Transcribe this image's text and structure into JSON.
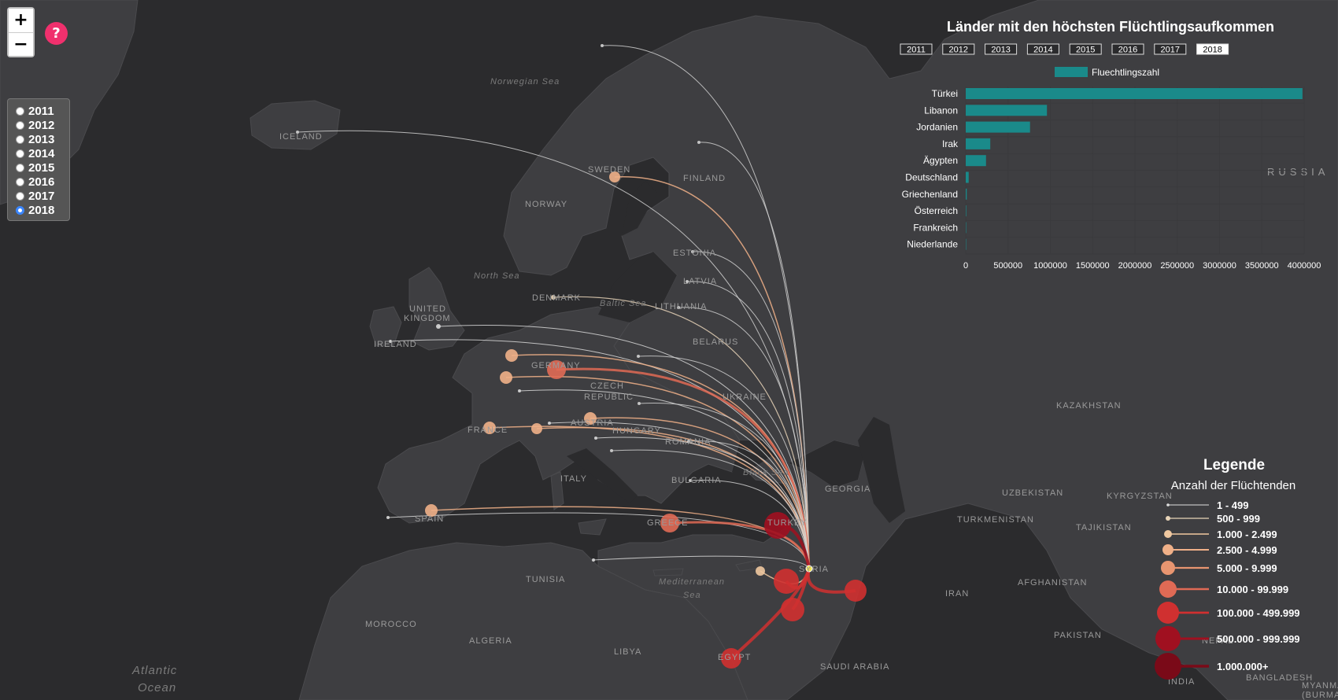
{
  "colors": {
    "bar": "#1a8a8a",
    "water": "#2b2b2d",
    "land": "#3e3e41",
    "label": "#9a9a9a"
  },
  "zoom": {
    "in_label": "+",
    "out_label": "−"
  },
  "help": {
    "label": "?"
  },
  "years": {
    "options": [
      "2011",
      "2012",
      "2013",
      "2014",
      "2015",
      "2016",
      "2017",
      "2018"
    ],
    "selected": "2018"
  },
  "map_labels": {
    "countries": [
      "ICELAND",
      "SWEDEN",
      "FINLAND",
      "NORWAY",
      "ESTONIA",
      "LATVIA",
      "LITHUANIA",
      "DENMARK",
      "UNITED",
      "KINGDOM",
      "IRELAND",
      "BELARUS",
      "GERMANY",
      "CZECH",
      "REPUBLIC",
      "UKRAINE",
      "AUSTRIA",
      "HUNGARY",
      "FRANCE",
      "ROMANIA",
      "ITALY",
      "BULGARIA",
      "SPAIN",
      "GREECE",
      "TURKEY",
      "GEORGIA",
      "SYRIA",
      "TUNISIA",
      "MOROCCO",
      "ALGERIA",
      "LIBYA",
      "EGYPT",
      "SAUDI ARABIA",
      "IRAN",
      "KAZAKHSTAN",
      "UZBEKISTAN",
      "KYRGYZSTAN",
      "TURKMENISTAN",
      "TAJIKISTAN",
      "AFGHANISTAN",
      "PAKISTAN",
      "NEPAL",
      "INDIA",
      "BANGLADESH",
      "MYANMAR",
      "(BURMA)",
      "RUSSIA"
    ],
    "seas": [
      "Norwegian Sea",
      "North Sea",
      "Baltic Sea",
      "Black Sea",
      "Mediterranean",
      "Sea",
      "Atlantic",
      "Ocean"
    ]
  },
  "chart_data": {
    "type": "bar",
    "orientation": "horizontal",
    "title": "Länder mit den höchsten Flüchtlingsaufkommen",
    "series_name": "Fluechtlingszahl",
    "categories": [
      "Türkei",
      "Libanon",
      "Jordanien",
      "Irak",
      "Ägypten",
      "Deutschland",
      "Griechenland",
      "Österreich",
      "Frankreich",
      "Niederlande"
    ],
    "values": [
      3980000,
      960000,
      760000,
      290000,
      240000,
      35000,
      12000,
      6000,
      5000,
      4000
    ],
    "xlim": [
      0,
      4000000
    ],
    "x_ticks": [
      "0",
      "500000",
      "1000000",
      "1500000",
      "2000000",
      "2500000",
      "3000000",
      "3500000",
      "4000000"
    ],
    "year_buttons": [
      "2011",
      "2012",
      "2013",
      "2014",
      "2015",
      "2016",
      "2017",
      "2018"
    ],
    "active_year": "2018",
    "grid": true,
    "legend_position": "top"
  },
  "legend": {
    "title": "Legende",
    "subtitle": "Anzahl der Flüchtenden",
    "items": [
      {
        "label": "1 - 499",
        "color": "#e0e0e0"
      },
      {
        "label": "500 - 999",
        "color": "#e8d4b8"
      },
      {
        "label": "1.000 - 2.499",
        "color": "#f0c8a0"
      },
      {
        "label": "2.500 - 4.999",
        "color": "#f0b088"
      },
      {
        "label": "5.000 - 9.999",
        "color": "#e89570"
      },
      {
        "label": "10.000 - 99.999",
        "color": "#e06a55"
      },
      {
        "label": "100.000 - 499.999",
        "color": "#d03030"
      },
      {
        "label": "500.000 - 999.999",
        "color": "#a01020"
      },
      {
        "label": "1.000.000+",
        "color": "#7a0a18"
      }
    ]
  }
}
